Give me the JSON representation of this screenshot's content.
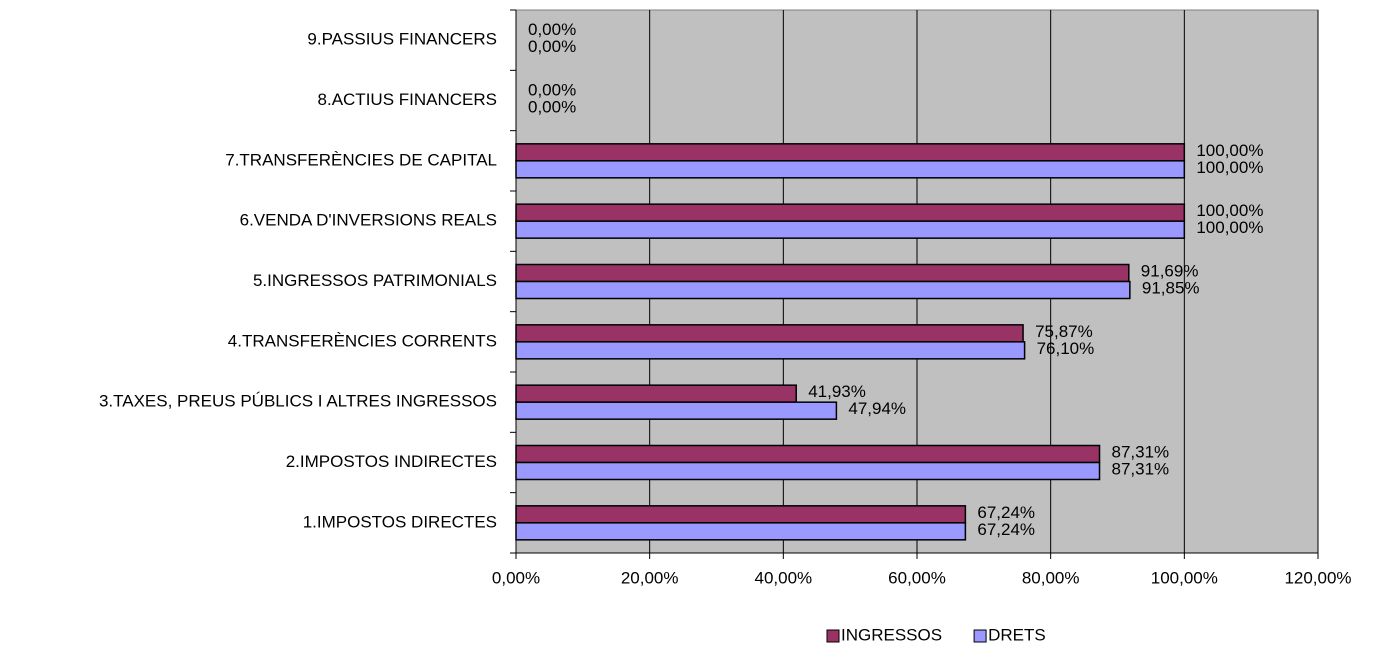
{
  "chart_data": {
    "type": "bar",
    "orientation": "horizontal",
    "categories": [
      "1.IMPOSTOS DIRECTES",
      "2.IMPOSTOS INDIRECTES",
      "3.TAXES, PREUS PÚBLICS I ALTRES INGRESSOS",
      "4.TRANSFERÈNCIES CORRENTS",
      "5.INGRESSOS PATRIMONIALS",
      "6.VENDA D'INVERSIONS REALS",
      "7.TRANSFERÈNCIES DE CAPITAL",
      "8.ACTIUS FINANCERS",
      "9.PASSIUS FINANCERS"
    ],
    "series": [
      {
        "name": "INGRESSOS",
        "color": "#993366",
        "values": [
          67.24,
          87.31,
          41.93,
          75.87,
          91.69,
          100,
          100,
          0,
          0
        ],
        "value_labels": [
          "67,24%",
          "87,31%",
          "41,93%",
          "75,87%",
          "91,69%",
          "100,00%",
          "100,00%",
          "0,00%",
          "0,00%"
        ]
      },
      {
        "name": "DRETS",
        "color": "#9999ff",
        "values": [
          67.24,
          87.31,
          47.94,
          76.1,
          91.85,
          100,
          100,
          0,
          0
        ],
        "value_labels": [
          "67,24%",
          "87,31%",
          "47,94%",
          "76,10%",
          "91,85%",
          "100,00%",
          "100,00%",
          "0,00%",
          "0,00%"
        ]
      }
    ],
    "xlim": [
      0,
      120
    ],
    "xticks": [
      {
        "value": 0,
        "label": "0,00%"
      },
      {
        "value": 20,
        "label": "20,00%"
      },
      {
        "value": 40,
        "label": "40,00%"
      },
      {
        "value": 60,
        "label": "60,00%"
      },
      {
        "value": 80,
        "label": "80,00%"
      },
      {
        "value": 100,
        "label": "100,00%"
      },
      {
        "value": 120,
        "label": "120,00%"
      }
    ],
    "grid": true,
    "legend": "bottom"
  }
}
